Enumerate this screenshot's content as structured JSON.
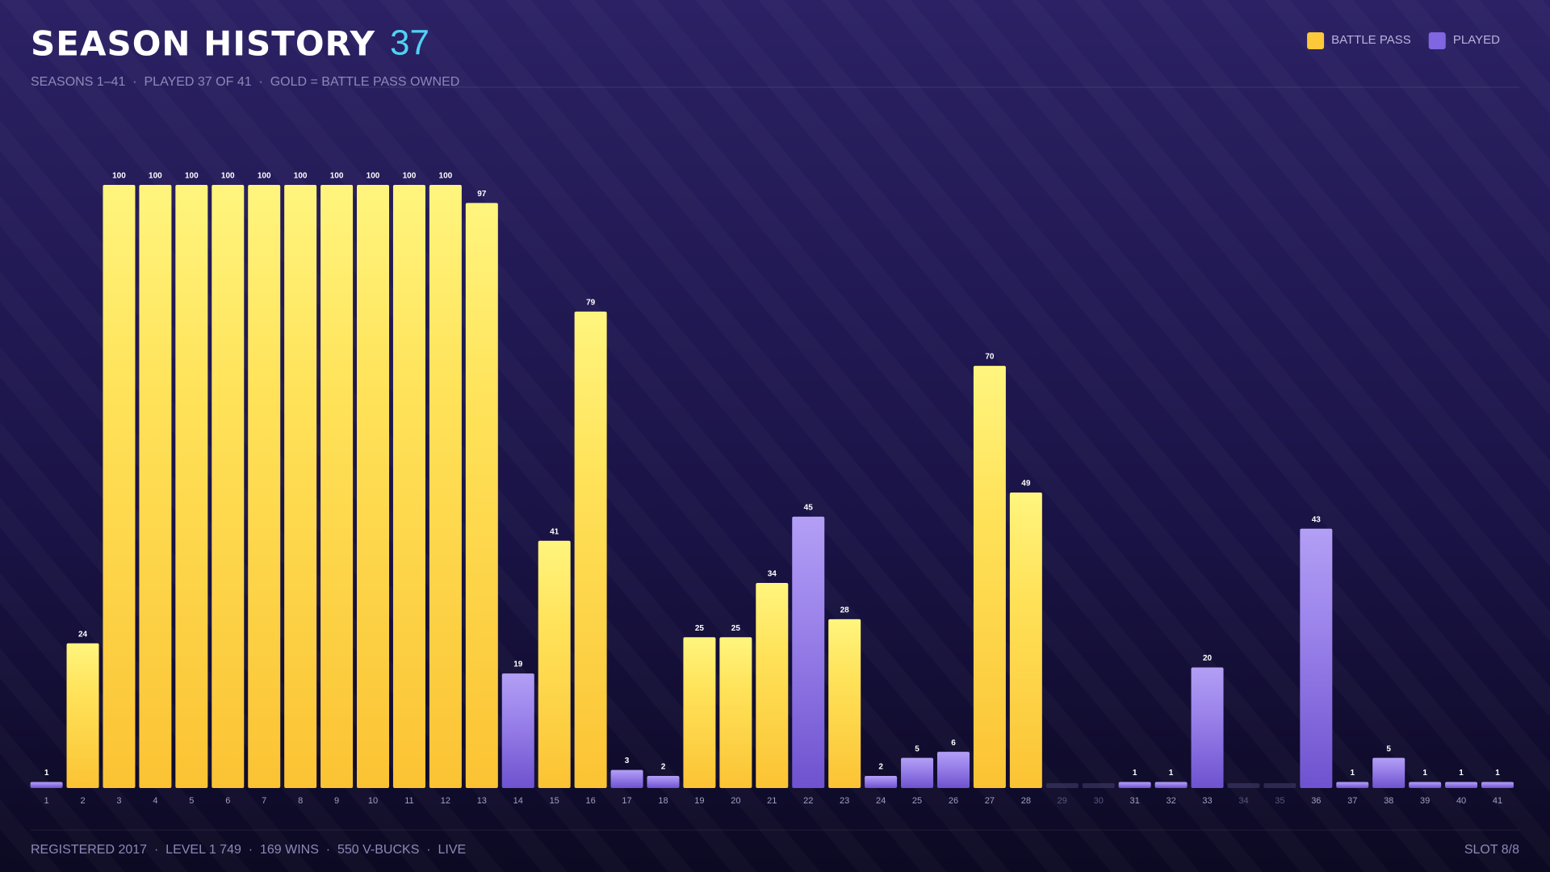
{
  "chart_data": {
    "type": "bar",
    "title": "SEASON HISTORY",
    "count": "37",
    "subtitle": "SEASONS 1–41  ·  PLAYED 37 OF 41  ·  GOLD = BATTLE PASS OWNED",
    "categories": [
      "1",
      "2",
      "3",
      "4",
      "5",
      "6",
      "7",
      "8",
      "9",
      "10",
      "11",
      "12",
      "13",
      "14",
      "15",
      "16",
      "17",
      "18",
      "19",
      "20",
      "21",
      "22",
      "23",
      "24",
      "25",
      "26",
      "27",
      "28",
      "29",
      "30",
      "31",
      "32",
      "33",
      "34",
      "35",
      "36",
      "37",
      "38",
      "39",
      "40",
      "41"
    ],
    "series": [
      {
        "name": "BATTLE PASS",
        "color": "#fcc93a",
        "values": [
          null,
          24,
          100,
          100,
          100,
          100,
          100,
          100,
          100,
          100,
          100,
          100,
          97,
          null,
          41,
          79,
          null,
          null,
          25,
          25,
          34,
          null,
          28,
          null,
          null,
          null,
          70,
          49,
          null,
          null,
          null,
          null,
          null,
          null,
          null,
          null,
          null,
          null,
          null,
          null,
          null
        ]
      },
      {
        "name": "PLAYED",
        "color": "#8066e0",
        "values": [
          1,
          null,
          null,
          null,
          null,
          null,
          null,
          null,
          null,
          null,
          null,
          null,
          null,
          19,
          null,
          null,
          3,
          2,
          null,
          null,
          null,
          45,
          null,
          2,
          5,
          6,
          null,
          null,
          null,
          null,
          1,
          1,
          20,
          null,
          null,
          43,
          1,
          5,
          1,
          1,
          1
        ]
      }
    ],
    "ylim": [
      0,
      100
    ]
  },
  "footer": {
    "left": "REGISTERED 2017  ·  LEVEL 1 749  ·  169 WINS  ·  550 V-BUCKS  ·  LIVE",
    "right": "SLOT 8/8"
  }
}
